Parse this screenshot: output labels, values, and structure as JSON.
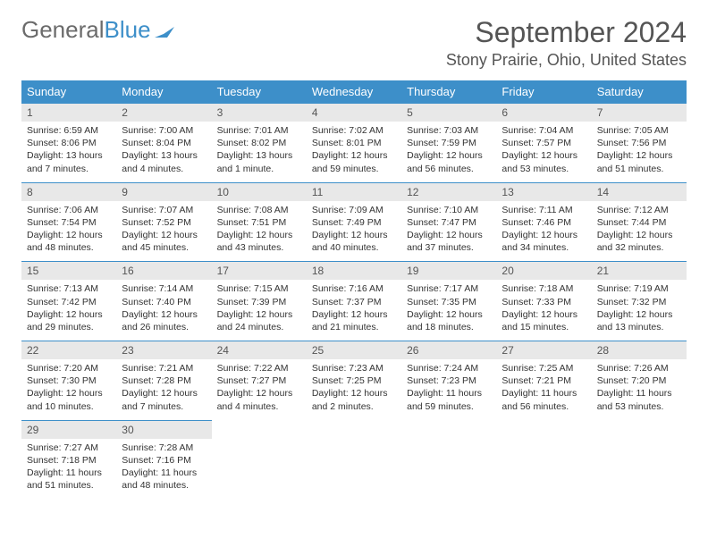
{
  "logo": {
    "text1": "General",
    "text2": "Blue"
  },
  "title": "September 2024",
  "location": "Stony Prairie, Ohio, United States",
  "colors": {
    "header_bg": "#3d8fc9",
    "header_text": "#ffffff",
    "daynum_bg": "#e8e8e8",
    "border": "#3d8fc9",
    "text": "#333333",
    "title_text": "#555555"
  },
  "weekdays": [
    "Sunday",
    "Monday",
    "Tuesday",
    "Wednesday",
    "Thursday",
    "Friday",
    "Saturday"
  ],
  "weeks": [
    {
      "nums": [
        "1",
        "2",
        "3",
        "4",
        "5",
        "6",
        "7"
      ],
      "cells": [
        {
          "sunrise": "Sunrise: 6:59 AM",
          "sunset": "Sunset: 8:06 PM",
          "day1": "Daylight: 13 hours",
          "day2": "and 7 minutes."
        },
        {
          "sunrise": "Sunrise: 7:00 AM",
          "sunset": "Sunset: 8:04 PM",
          "day1": "Daylight: 13 hours",
          "day2": "and 4 minutes."
        },
        {
          "sunrise": "Sunrise: 7:01 AM",
          "sunset": "Sunset: 8:02 PM",
          "day1": "Daylight: 13 hours",
          "day2": "and 1 minute."
        },
        {
          "sunrise": "Sunrise: 7:02 AM",
          "sunset": "Sunset: 8:01 PM",
          "day1": "Daylight: 12 hours",
          "day2": "and 59 minutes."
        },
        {
          "sunrise": "Sunrise: 7:03 AM",
          "sunset": "Sunset: 7:59 PM",
          "day1": "Daylight: 12 hours",
          "day2": "and 56 minutes."
        },
        {
          "sunrise": "Sunrise: 7:04 AM",
          "sunset": "Sunset: 7:57 PM",
          "day1": "Daylight: 12 hours",
          "day2": "and 53 minutes."
        },
        {
          "sunrise": "Sunrise: 7:05 AM",
          "sunset": "Sunset: 7:56 PM",
          "day1": "Daylight: 12 hours",
          "day2": "and 51 minutes."
        }
      ]
    },
    {
      "nums": [
        "8",
        "9",
        "10",
        "11",
        "12",
        "13",
        "14"
      ],
      "cells": [
        {
          "sunrise": "Sunrise: 7:06 AM",
          "sunset": "Sunset: 7:54 PM",
          "day1": "Daylight: 12 hours",
          "day2": "and 48 minutes."
        },
        {
          "sunrise": "Sunrise: 7:07 AM",
          "sunset": "Sunset: 7:52 PM",
          "day1": "Daylight: 12 hours",
          "day2": "and 45 minutes."
        },
        {
          "sunrise": "Sunrise: 7:08 AM",
          "sunset": "Sunset: 7:51 PM",
          "day1": "Daylight: 12 hours",
          "day2": "and 43 minutes."
        },
        {
          "sunrise": "Sunrise: 7:09 AM",
          "sunset": "Sunset: 7:49 PM",
          "day1": "Daylight: 12 hours",
          "day2": "and 40 minutes."
        },
        {
          "sunrise": "Sunrise: 7:10 AM",
          "sunset": "Sunset: 7:47 PM",
          "day1": "Daylight: 12 hours",
          "day2": "and 37 minutes."
        },
        {
          "sunrise": "Sunrise: 7:11 AM",
          "sunset": "Sunset: 7:46 PM",
          "day1": "Daylight: 12 hours",
          "day2": "and 34 minutes."
        },
        {
          "sunrise": "Sunrise: 7:12 AM",
          "sunset": "Sunset: 7:44 PM",
          "day1": "Daylight: 12 hours",
          "day2": "and 32 minutes."
        }
      ]
    },
    {
      "nums": [
        "15",
        "16",
        "17",
        "18",
        "19",
        "20",
        "21"
      ],
      "cells": [
        {
          "sunrise": "Sunrise: 7:13 AM",
          "sunset": "Sunset: 7:42 PM",
          "day1": "Daylight: 12 hours",
          "day2": "and 29 minutes."
        },
        {
          "sunrise": "Sunrise: 7:14 AM",
          "sunset": "Sunset: 7:40 PM",
          "day1": "Daylight: 12 hours",
          "day2": "and 26 minutes."
        },
        {
          "sunrise": "Sunrise: 7:15 AM",
          "sunset": "Sunset: 7:39 PM",
          "day1": "Daylight: 12 hours",
          "day2": "and 24 minutes."
        },
        {
          "sunrise": "Sunrise: 7:16 AM",
          "sunset": "Sunset: 7:37 PM",
          "day1": "Daylight: 12 hours",
          "day2": "and 21 minutes."
        },
        {
          "sunrise": "Sunrise: 7:17 AM",
          "sunset": "Sunset: 7:35 PM",
          "day1": "Daylight: 12 hours",
          "day2": "and 18 minutes."
        },
        {
          "sunrise": "Sunrise: 7:18 AM",
          "sunset": "Sunset: 7:33 PM",
          "day1": "Daylight: 12 hours",
          "day2": "and 15 minutes."
        },
        {
          "sunrise": "Sunrise: 7:19 AM",
          "sunset": "Sunset: 7:32 PM",
          "day1": "Daylight: 12 hours",
          "day2": "and 13 minutes."
        }
      ]
    },
    {
      "nums": [
        "22",
        "23",
        "24",
        "25",
        "26",
        "27",
        "28"
      ],
      "cells": [
        {
          "sunrise": "Sunrise: 7:20 AM",
          "sunset": "Sunset: 7:30 PM",
          "day1": "Daylight: 12 hours",
          "day2": "and 10 minutes."
        },
        {
          "sunrise": "Sunrise: 7:21 AM",
          "sunset": "Sunset: 7:28 PM",
          "day1": "Daylight: 12 hours",
          "day2": "and 7 minutes."
        },
        {
          "sunrise": "Sunrise: 7:22 AM",
          "sunset": "Sunset: 7:27 PM",
          "day1": "Daylight: 12 hours",
          "day2": "and 4 minutes."
        },
        {
          "sunrise": "Sunrise: 7:23 AM",
          "sunset": "Sunset: 7:25 PM",
          "day1": "Daylight: 12 hours",
          "day2": "and 2 minutes."
        },
        {
          "sunrise": "Sunrise: 7:24 AM",
          "sunset": "Sunset: 7:23 PM",
          "day1": "Daylight: 11 hours",
          "day2": "and 59 minutes."
        },
        {
          "sunrise": "Sunrise: 7:25 AM",
          "sunset": "Sunset: 7:21 PM",
          "day1": "Daylight: 11 hours",
          "day2": "and 56 minutes."
        },
        {
          "sunrise": "Sunrise: 7:26 AM",
          "sunset": "Sunset: 7:20 PM",
          "day1": "Daylight: 11 hours",
          "day2": "and 53 minutes."
        }
      ]
    },
    {
      "nums": [
        "29",
        "30",
        "",
        "",
        "",
        "",
        ""
      ],
      "cells": [
        {
          "sunrise": "Sunrise: 7:27 AM",
          "sunset": "Sunset: 7:18 PM",
          "day1": "Daylight: 11 hours",
          "day2": "and 51 minutes."
        },
        {
          "sunrise": "Sunrise: 7:28 AM",
          "sunset": "Sunset: 7:16 PM",
          "day1": "Daylight: 11 hours",
          "day2": "and 48 minutes."
        },
        null,
        null,
        null,
        null,
        null
      ]
    }
  ]
}
